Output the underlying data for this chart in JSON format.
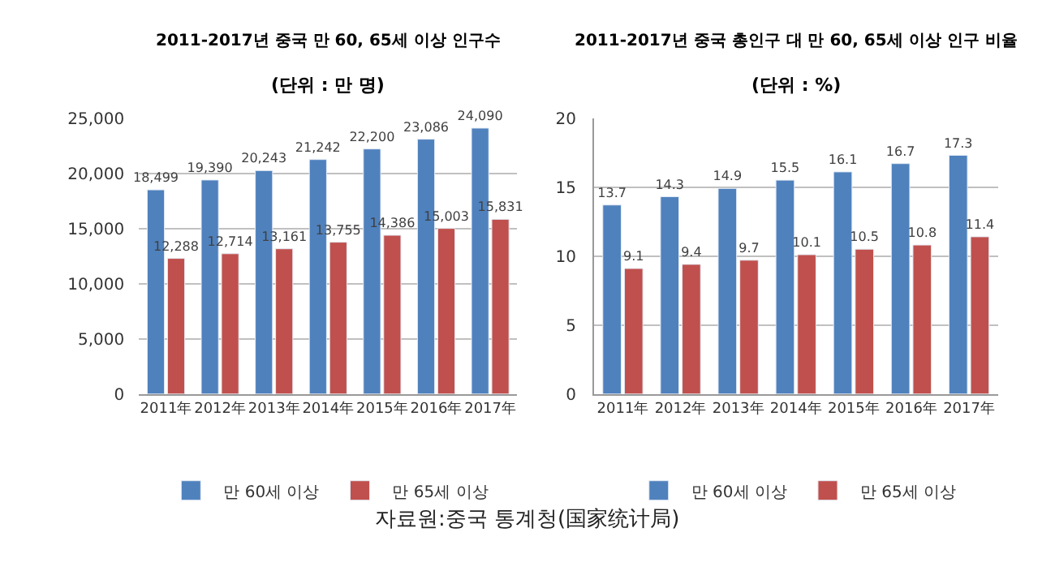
{
  "chart_data": [
    {
      "type": "bar",
      "title": "2011-2017년 중국 만 60, 65세 이상 인구수",
      "subtitle": "(단위 : 만 명)",
      "categories": [
        "2011年",
        "2012年",
        "2013年",
        "2014年",
        "2015年",
        "2016年",
        "2017年"
      ],
      "series": [
        {
          "name": "만 60세 이상",
          "color": "#4f81bd",
          "values": [
            18499,
            19390,
            20243,
            21242,
            22200,
            23086,
            24090
          ]
        },
        {
          "name": "만 65세 이상",
          "color": "#c0504d",
          "values": [
            12288,
            12714,
            13161,
            13755,
            14386,
            15003,
            15831
          ]
        }
      ],
      "ylim": [
        0,
        25000
      ],
      "yticks": [
        {
          "value": 0,
          "label": "0"
        },
        {
          "value": 5000,
          "label": "5,000"
        },
        {
          "value": 10000,
          "label": "10,000"
        },
        {
          "value": 15000,
          "label": "15,000"
        },
        {
          "value": 20000,
          "label": "20,000"
        },
        {
          "value": 25000,
          "label": "25,000"
        }
      ],
      "value_labels": [
        [
          "18,499",
          "19,390",
          "20,243",
          "21,242",
          "22,200",
          "23,086",
          "24,090"
        ],
        [
          "12,288",
          "12,714",
          "13,161",
          "13,755",
          "14,386",
          "15,003",
          "15,831"
        ]
      ],
      "grid": "y",
      "legend": "bottom",
      "annotations": [
        "자료원:중국 통계청(国家统计局)"
      ]
    },
    {
      "type": "bar",
      "title": "2011-2017년 중국 총인구 대 만 60, 65세 이상 인구 비율",
      "subtitle": "(단위 : %)",
      "categories": [
        "2011年",
        "2012年",
        "2013年",
        "2014年",
        "2015年",
        "2016年",
        "2017年"
      ],
      "series": [
        {
          "name": "만 60세 이상",
          "color": "#4f81bd",
          "values": [
            13.7,
            14.3,
            14.9,
            15.5,
            16.1,
            16.7,
            17.3
          ]
        },
        {
          "name": "만 65세 이상",
          "color": "#c0504d",
          "values": [
            9.1,
            9.4,
            9.7,
            10.1,
            10.5,
            10.8,
            11.4
          ]
        }
      ],
      "ylim": [
        0,
        20
      ],
      "yticks": [
        0,
        5,
        10,
        15,
        20
      ],
      "data_labels": true,
      "grid": "y",
      "legend": "bottom"
    }
  ]
}
